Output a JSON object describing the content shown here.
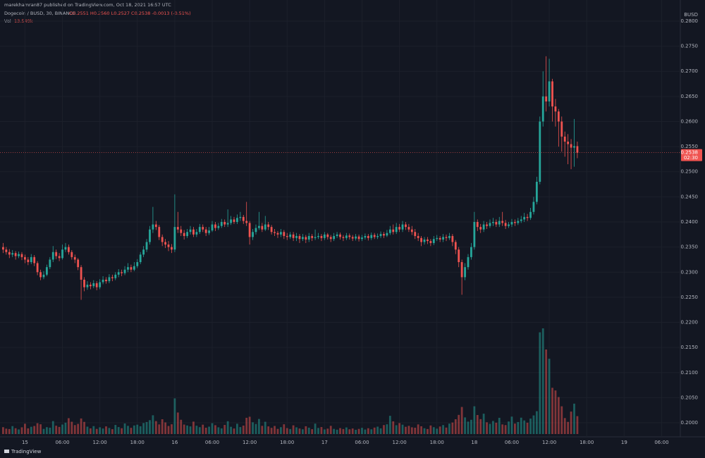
{
  "header": {
    "publisher": "marekhamran87 published on TradingView.com, Oct 18, 2021 16:57 UTC",
    "symbol": "Dogecoin / BUSD, 30, BINANCE",
    "ohlc": "O0.2551 H0.2560 L0.2527 C0.2538 -0.0013 (-0.51%)",
    "volume_name": "Vol",
    "volume_label": "13.549k"
  },
  "footer": {
    "logo": "TradingView"
  },
  "chart_data": {
    "type": "candlestick",
    "currency": "BUSD",
    "up_color": "#26a69a",
    "down_color": "#ef5350",
    "last_price": 0.2538,
    "countdown": "02:30",
    "xlim": [
      -1,
      217
    ],
    "xticks": [
      {
        "value": 7,
        "label": "15"
      },
      {
        "value": 19,
        "label": "06:00"
      },
      {
        "value": 31,
        "label": "12:00"
      },
      {
        "value": 43,
        "label": "18:00"
      },
      {
        "value": 55,
        "label": "16"
      },
      {
        "value": 67,
        "label": "06:00"
      },
      {
        "value": 79,
        "label": "12:00"
      },
      {
        "value": 91,
        "label": "18:00"
      },
      {
        "value": 103,
        "label": "17"
      },
      {
        "value": 115,
        "label": "06:00"
      },
      {
        "value": 127,
        "label": "12:00"
      },
      {
        "value": 139,
        "label": "18:00"
      },
      {
        "value": 151,
        "label": "18"
      },
      {
        "value": 163,
        "label": "06:00"
      },
      {
        "value": 175,
        "label": "12:00"
      },
      {
        "value": 187,
        "label": "18:00"
      },
      {
        "value": 199,
        "label": "19"
      },
      {
        "value": 211,
        "label": "06:00"
      }
    ],
    "ylim": [
      0.1972,
      0.2821
    ],
    "yticks": [
      {
        "value": 0.2,
        "label": "0.2000"
      },
      {
        "value": 0.205,
        "label": "0.2050"
      },
      {
        "value": 0.21,
        "label": "0.2100"
      },
      {
        "value": 0.215,
        "label": "0.2150"
      },
      {
        "value": 0.22,
        "label": "0.2200"
      },
      {
        "value": 0.225,
        "label": "0.2250"
      },
      {
        "value": 0.23,
        "label": "0.2300"
      },
      {
        "value": 0.235,
        "label": "0.2350"
      },
      {
        "value": 0.24,
        "label": "0.2400"
      },
      {
        "value": 0.245,
        "label": "0.2450"
      },
      {
        "value": 0.25,
        "label": "0.2500"
      },
      {
        "value": 0.255,
        "label": "0.2550"
      },
      {
        "value": 0.26,
        "label": "0.2600"
      },
      {
        "value": 0.265,
        "label": "0.2650"
      },
      {
        "value": 0.27,
        "label": "0.2700"
      },
      {
        "value": 0.275,
        "label": "0.2750"
      },
      {
        "value": 0.28,
        "label": "0.2800"
      }
    ],
    "open": [
      0.235,
      0.2345,
      0.234,
      0.2335,
      0.2338,
      0.2332,
      0.2336,
      0.233,
      0.2325,
      0.232,
      0.233,
      0.2318,
      0.23,
      0.229,
      0.2295,
      0.231,
      0.2325,
      0.234,
      0.2332,
      0.2328,
      0.2345,
      0.235,
      0.234,
      0.233,
      0.2325,
      0.231,
      0.2285,
      0.227,
      0.2275,
      0.2272,
      0.2278,
      0.227,
      0.228,
      0.2285,
      0.2282,
      0.229,
      0.2288,
      0.2295,
      0.23,
      0.2298,
      0.2305,
      0.231,
      0.2305,
      0.2312,
      0.232,
      0.2335,
      0.2345,
      0.236,
      0.2385,
      0.2395,
      0.239,
      0.237,
      0.236,
      0.2355,
      0.235,
      0.2345,
      0.239,
      0.2385,
      0.2378,
      0.2372,
      0.238,
      0.2385,
      0.2375,
      0.238,
      0.239,
      0.2385,
      0.2378,
      0.2383,
      0.2395,
      0.2388,
      0.2392,
      0.24,
      0.2395,
      0.2398,
      0.2405,
      0.24,
      0.2408,
      0.241,
      0.2402,
      0.2398,
      0.237,
      0.238,
      0.2388,
      0.2392,
      0.2385,
      0.2395,
      0.239,
      0.238,
      0.2378,
      0.2375,
      0.238,
      0.2372,
      0.237,
      0.2375,
      0.2368,
      0.2372,
      0.2366,
      0.237,
      0.2365,
      0.2372,
      0.2368,
      0.237,
      0.2372,
      0.2368,
      0.2375,
      0.237,
      0.2366,
      0.2372,
      0.2375,
      0.237,
      0.2368,
      0.2373,
      0.237,
      0.2367,
      0.2371,
      0.2366,
      0.2369,
      0.2372,
      0.2368,
      0.2374,
      0.237,
      0.2372,
      0.2376,
      0.2373,
      0.2378,
      0.2385,
      0.238,
      0.239,
      0.2385,
      0.2395,
      0.239,
      0.2385,
      0.238,
      0.2372,
      0.2368,
      0.236,
      0.2365,
      0.2362,
      0.2358,
      0.2366,
      0.2368,
      0.2365,
      0.237,
      0.2368,
      0.2372,
      0.236,
      0.2345,
      0.232,
      0.229,
      0.231,
      0.233,
      0.235,
      0.24,
      0.239,
      0.2385,
      0.2395,
      0.2392,
      0.2398,
      0.24,
      0.2395,
      0.2402,
      0.2398,
      0.2392,
      0.2395,
      0.24,
      0.2398,
      0.2402,
      0.2405,
      0.241,
      0.2408,
      0.242,
      0.244,
      0.248,
      0.26,
      0.265,
      0.264,
      0.268,
      0.263,
      0.262,
      0.26,
      0.257,
      0.256,
      0.2555,
      0.2548,
      0.2551
    ],
    "high": [
      0.2358,
      0.235,
      0.2346,
      0.2344,
      0.2342,
      0.2341,
      0.234,
      0.2335,
      0.233,
      0.2336,
      0.2334,
      0.2322,
      0.2305,
      0.2302,
      0.2315,
      0.233,
      0.2352,
      0.2345,
      0.2338,
      0.2355,
      0.2358,
      0.2355,
      0.2344,
      0.2335,
      0.2328,
      0.2314,
      0.229,
      0.2282,
      0.228,
      0.2284,
      0.2282,
      0.2286,
      0.2292,
      0.229,
      0.2296,
      0.2295,
      0.23,
      0.2306,
      0.2305,
      0.2312,
      0.2318,
      0.2315,
      0.232,
      0.2326,
      0.234,
      0.2352,
      0.2366,
      0.2392,
      0.243,
      0.2402,
      0.2394,
      0.2375,
      0.2366,
      0.2362,
      0.2356,
      0.2455,
      0.242,
      0.2392,
      0.2384,
      0.2386,
      0.2392,
      0.239,
      0.2386,
      0.2396,
      0.2395,
      0.239,
      0.239,
      0.2402,
      0.24,
      0.2398,
      0.2406,
      0.2405,
      0.2425,
      0.2412,
      0.241,
      0.2415,
      0.242,
      0.2414,
      0.244,
      0.2402,
      0.2386,
      0.2395,
      0.242,
      0.2398,
      0.2412,
      0.24,
      0.2394,
      0.2386,
      0.2382,
      0.2386,
      0.2384,
      0.2378,
      0.238,
      0.238,
      0.2378,
      0.2376,
      0.2376,
      0.2374,
      0.2378,
      0.2376,
      0.2385,
      0.2378,
      0.2376,
      0.238,
      0.2378,
      0.2374,
      0.2378,
      0.238,
      0.2379,
      0.2374,
      0.2378,
      0.2377,
      0.2374,
      0.2376,
      0.2375,
      0.2374,
      0.2377,
      0.2376,
      0.2379,
      0.2378,
      0.2377,
      0.2381,
      0.238,
      0.2384,
      0.2392,
      0.2395,
      0.2398,
      0.2396,
      0.2402,
      0.24,
      0.2396,
      0.2392,
      0.2386,
      0.2378,
      0.2372,
      0.237,
      0.237,
      0.2366,
      0.2372,
      0.2374,
      0.2372,
      0.2376,
      0.2375,
      0.2378,
      0.2376,
      0.2364,
      0.235,
      0.2325,
      0.2318,
      0.2336,
      0.2358,
      0.242,
      0.2405,
      0.2396,
      0.2402,
      0.24,
      0.2405,
      0.2408,
      0.2405,
      0.241,
      0.242,
      0.2404,
      0.24,
      0.2406,
      0.2405,
      0.2408,
      0.2412,
      0.2418,
      0.2416,
      0.2428,
      0.245,
      0.249,
      0.261,
      0.27,
      0.273,
      0.2725,
      0.2685,
      0.2645,
      0.2625,
      0.261,
      0.258,
      0.2575,
      0.2565,
      0.2605,
      0.256
    ],
    "low": [
      0.2338,
      0.2335,
      0.2328,
      0.233,
      0.2325,
      0.2328,
      0.2324,
      0.2318,
      0.2314,
      0.2316,
      0.2312,
      0.2294,
      0.2284,
      0.2286,
      0.2292,
      0.2306,
      0.232,
      0.2326,
      0.2322,
      0.2325,
      0.234,
      0.2335,
      0.2325,
      0.2318,
      0.2304,
      0.2245,
      0.2262,
      0.2265,
      0.2266,
      0.2268,
      0.2264,
      0.2266,
      0.2276,
      0.2277,
      0.2278,
      0.2282,
      0.2284,
      0.229,
      0.2292,
      0.2294,
      0.23,
      0.23,
      0.2302,
      0.2308,
      0.2316,
      0.233,
      0.234,
      0.2355,
      0.2378,
      0.2384,
      0.2364,
      0.2352,
      0.2348,
      0.2342,
      0.2338,
      0.234,
      0.2378,
      0.2372,
      0.2365,
      0.2368,
      0.2375,
      0.237,
      0.237,
      0.2376,
      0.238,
      0.2372,
      0.2374,
      0.238,
      0.2382,
      0.2384,
      0.2388,
      0.239,
      0.239,
      0.2394,
      0.2396,
      0.2396,
      0.2402,
      0.2396,
      0.2392,
      0.2355,
      0.2364,
      0.2375,
      0.2384,
      0.238,
      0.2382,
      0.2384,
      0.2375,
      0.2372,
      0.2368,
      0.237,
      0.2366,
      0.2364,
      0.2366,
      0.2362,
      0.2362,
      0.2358,
      0.2362,
      0.2358,
      0.236,
      0.2362,
      0.2364,
      0.2366,
      0.2362,
      0.2364,
      0.2365,
      0.236,
      0.2362,
      0.2368,
      0.2365,
      0.2362,
      0.2364,
      0.2365,
      0.2362,
      0.2363,
      0.2361,
      0.2362,
      0.2365,
      0.2363,
      0.2364,
      0.2366,
      0.2366,
      0.2368,
      0.2368,
      0.237,
      0.2374,
      0.2375,
      0.2376,
      0.238,
      0.238,
      0.2384,
      0.238,
      0.2374,
      0.2366,
      0.2362,
      0.2352,
      0.2355,
      0.2356,
      0.2352,
      0.2354,
      0.2362,
      0.236,
      0.236,
      0.2362,
      0.2364,
      0.2352,
      0.2336,
      0.231,
      0.2255,
      0.2284,
      0.2305,
      0.2325,
      0.2345,
      0.2382,
      0.2378,
      0.238,
      0.2386,
      0.2388,
      0.2392,
      0.239,
      0.239,
      0.2392,
      0.2386,
      0.2388,
      0.239,
      0.2392,
      0.2394,
      0.2398,
      0.24,
      0.2402,
      0.2404,
      0.2415,
      0.2435,
      0.2475,
      0.259,
      0.262,
      0.263,
      0.26,
      0.259,
      0.255,
      0.254,
      0.253,
      0.2515,
      0.2505,
      0.251,
      0.2527
    ],
    "close": [
      0.2345,
      0.234,
      0.2335,
      0.2338,
      0.2332,
      0.2336,
      0.233,
      0.2325,
      0.232,
      0.233,
      0.2318,
      0.23,
      0.229,
      0.2295,
      0.231,
      0.2325,
      0.234,
      0.2332,
      0.2328,
      0.2345,
      0.235,
      0.234,
      0.233,
      0.2325,
      0.231,
      0.2285,
      0.227,
      0.2275,
      0.2272,
      0.2278,
      0.227,
      0.228,
      0.2285,
      0.2282,
      0.229,
      0.2288,
      0.2295,
      0.23,
      0.2298,
      0.2305,
      0.231,
      0.2305,
      0.2312,
      0.232,
      0.2335,
      0.2345,
      0.236,
      0.2385,
      0.2395,
      0.239,
      0.237,
      0.236,
      0.2355,
      0.235,
      0.2345,
      0.239,
      0.2385,
      0.2378,
      0.2372,
      0.238,
      0.2385,
      0.2375,
      0.238,
      0.239,
      0.2385,
      0.2378,
      0.2383,
      0.2395,
      0.2388,
      0.2392,
      0.24,
      0.2395,
      0.2398,
      0.2405,
      0.24,
      0.2408,
      0.241,
      0.2402,
      0.2398,
      0.237,
      0.238,
      0.2388,
      0.2392,
      0.2385,
      0.2395,
      0.239,
      0.238,
      0.2378,
      0.2375,
      0.238,
      0.2372,
      0.237,
      0.2375,
      0.2368,
      0.2372,
      0.2366,
      0.237,
      0.2365,
      0.2372,
      0.2368,
      0.237,
      0.2372,
      0.2368,
      0.2375,
      0.237,
      0.2366,
      0.2372,
      0.2375,
      0.237,
      0.2368,
      0.2373,
      0.237,
      0.2367,
      0.2371,
      0.2366,
      0.2369,
      0.2372,
      0.2368,
      0.2374,
      0.237,
      0.2372,
      0.2376,
      0.2373,
      0.2378,
      0.2385,
      0.238,
      0.239,
      0.2385,
      0.2395,
      0.239,
      0.2385,
      0.238,
      0.2372,
      0.2368,
      0.236,
      0.2365,
      0.2362,
      0.2358,
      0.2366,
      0.2368,
      0.2365,
      0.237,
      0.2368,
      0.2372,
      0.236,
      0.2345,
      0.232,
      0.229,
      0.231,
      0.233,
      0.235,
      0.24,
      0.239,
      0.2385,
      0.2395,
      0.2392,
      0.2398,
      0.24,
      0.2395,
      0.2402,
      0.2398,
      0.2392,
      0.2395,
      0.24,
      0.2398,
      0.2402,
      0.2405,
      0.241,
      0.2408,
      0.242,
      0.244,
      0.248,
      0.26,
      0.265,
      0.264,
      0.268,
      0.263,
      0.262,
      0.26,
      0.257,
      0.256,
      0.2555,
      0.2548,
      0.2551,
      0.2538
    ],
    "volume": [
      5200,
      4100,
      3800,
      6000,
      4400,
      3500,
      5100,
      7800,
      4300,
      5500,
      6100,
      8200,
      7400,
      3900,
      5200,
      4800,
      9800,
      6300,
      5400,
      7200,
      8600,
      12000,
      9300,
      6800,
      7700,
      11800,
      9200,
      5600,
      4300,
      6000,
      3900,
      5100,
      4200,
      5800,
      4600,
      3700,
      6900,
      5300,
      4400,
      8000,
      6200,
      4700,
      6500,
      7100,
      5900,
      8300,
      9100,
      10500,
      14200,
      9800,
      7300,
      11200,
      8800,
      6100,
      7400,
      27000,
      16300,
      10800,
      7200,
      6500,
      5800,
      9400,
      6300,
      5200,
      7100,
      4800,
      5600,
      8200,
      6700,
      5100,
      4300,
      6900,
      9700,
      5500,
      4200,
      7800,
      5300,
      6400,
      12300,
      13100,
      8900,
      7600,
      11400,
      6200,
      9300,
      5800,
      4700,
      6100,
      3900,
      5200,
      7400,
      4500,
      3800,
      6600,
      5100,
      4200,
      3600,
      5900,
      4800,
      3700,
      7900,
      4600,
      5300,
      3500,
      4100,
      6200,
      3900,
      3300,
      4500,
      3800,
      5000,
      3600,
      4200,
      3200,
      3900,
      4700,
      3400,
      4400,
      3600,
      4900,
      5600,
      4300,
      6800,
      7400,
      13800,
      9600,
      6700,
      8300,
      7100,
      5500,
      6200,
      5100,
      4800,
      7300,
      5900,
      4400,
      3800,
      6500,
      5200,
      4100,
      5700,
      6800,
      4900,
      7900,
      8700,
      11200,
      14500,
      20500,
      12600,
      9400,
      10800,
      21000,
      14400,
      11300,
      15400,
      8900,
      7700,
      9900,
      8600,
      12300,
      7300,
      6800,
      9500,
      13200,
      7900,
      9100,
      12400,
      10300,
      8600,
      11700,
      14100,
      17300,
      77000,
      80000,
      64000,
      57000,
      35000,
      33000,
      28000,
      21000,
      12100,
      9200,
      17000,
      23000,
      13549
    ]
  }
}
